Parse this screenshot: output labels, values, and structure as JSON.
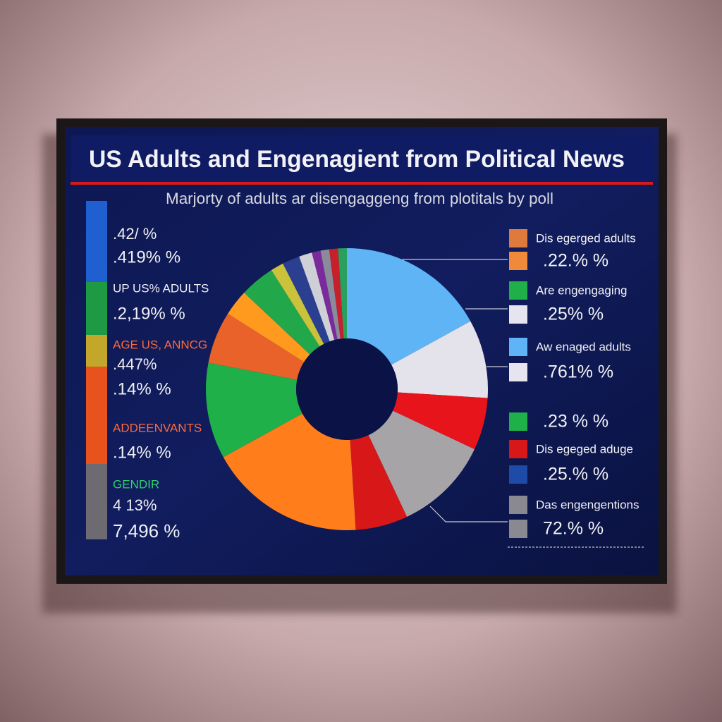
{
  "chart_data": {
    "type": "pie",
    "donut": true,
    "title": "US Adults and Engenagient from Political News",
    "subtitle": "Marjorty of adults ar disengaggeng from plotitals by poll",
    "categories": [
      null,
      null,
      null,
      null,
      null,
      null,
      null,
      null,
      null,
      null,
      null,
      null,
      null,
      null,
      null,
      null,
      null
    ],
    "values": [
      17,
      9,
      6,
      11,
      6,
      18,
      11,
      6,
      3,
      4,
      1.5,
      2,
      1.5,
      1,
      1,
      1,
      1
    ],
    "colors": [
      "#5fb4f5",
      "#e4e2ea",
      "#e8141b",
      "#a7a4a8",
      "#d81818",
      "#ff7d1a",
      "#1fb04a",
      "#e8622a",
      "#ff9a1e",
      "#22a84a",
      "#c9c23a",
      "#2a3f8f",
      "#cfcfd8",
      "#7a2a9a",
      "#8a8a9a",
      "#c8202a",
      "#2aa060"
    ],
    "left_legend": [
      {
        "color": "#1f5fd0",
        "labels": [
          ".42/ %",
          ".419% %"
        ]
      },
      {
        "color": "#1e9a44",
        "labels": [
          "UP US% ADULTS",
          ".2,19% %"
        ]
      },
      {
        "color": "#c2a72a",
        "labels": [
          "AGE US, ANNCG",
          ".447%"
        ]
      },
      {
        "color": "#e8521c",
        "labels": [
          ".14% %",
          "ADDEENVANTS",
          ".14% %"
        ]
      },
      {
        "color": "#6e6a72",
        "labels": [
          "GENDIR",
          "4 13%",
          "7,496 %"
        ]
      }
    ],
    "right_legend": [
      {
        "color": "#e07a3c",
        "label": "Dis egerged adults"
      },
      {
        "color": "#f08a3a",
        "label": ".22.% %"
      },
      {
        "color": "#1fb04a",
        "label": "Are engengaging"
      },
      {
        "color": "#e6e4ee",
        "label": ".25% %"
      },
      {
        "color": "#5fb4f5",
        "label": "Aw enaged adults"
      },
      {
        "color": "#e6e4ee",
        "label": ".761% %"
      },
      {
        "color": "#1fb04a",
        "label": ".23 % %"
      },
      {
        "color": "#d81818",
        "label": "Dis egeged aduge"
      },
      {
        "color": "#1e4aa8",
        "label": ".25.% %"
      },
      {
        "color": "#8a8890",
        "label": "Das engengentions"
      },
      {
        "color": "#8a8890",
        "label": "72.% %"
      }
    ]
  }
}
